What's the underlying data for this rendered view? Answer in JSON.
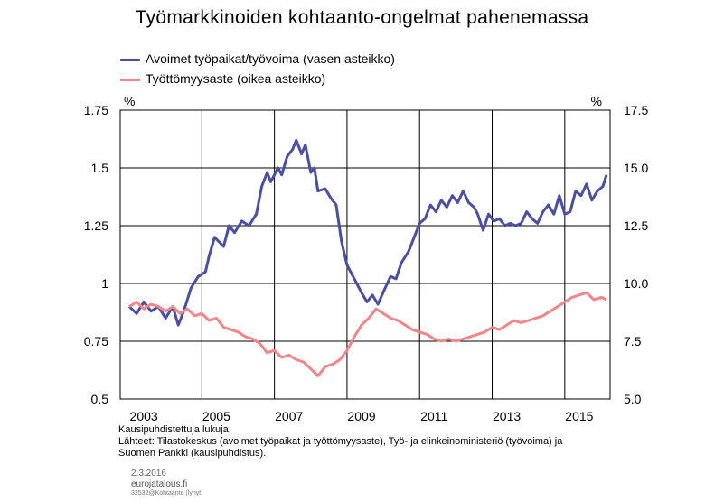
{
  "chart_data": {
    "type": "line",
    "title": "Työmarkkinoiden  kohtaanto-ongelmat  pahenemassa",
    "x_range": [
      2002.75,
      2016.25
    ],
    "x_ticks": [
      "2003",
      "2005",
      "2007",
      "2009",
      "2011",
      "2013",
      "2015"
    ],
    "left_axis": {
      "unit": "%",
      "ylim": [
        0.5,
        1.75
      ],
      "ticks": [
        "0.5",
        "0.75",
        "1",
        "1.25",
        "1.5",
        "1.75"
      ]
    },
    "right_axis": {
      "unit": "%",
      "ylim": [
        5.0,
        17.5
      ],
      "ticks": [
        "5.0",
        "7.5",
        "10.0",
        "12.5",
        "15.0",
        "17.5"
      ]
    },
    "grid": true,
    "series": [
      {
        "name": "Avoimet työpaikat/työvoima (vasen asteikko)",
        "axis": "left",
        "color": "#4a4fa0",
        "points": [
          [
            2003.0,
            0.9
          ],
          [
            2003.2,
            0.87
          ],
          [
            2003.4,
            0.92
          ],
          [
            2003.6,
            0.88
          ],
          [
            2003.8,
            0.9
          ],
          [
            2004.0,
            0.85
          ],
          [
            2004.2,
            0.9
          ],
          [
            2004.35,
            0.82
          ],
          [
            2004.5,
            0.88
          ],
          [
            2004.7,
            0.98
          ],
          [
            2004.9,
            1.03
          ],
          [
            2005.1,
            1.05
          ],
          [
            2005.2,
            1.12
          ],
          [
            2005.35,
            1.2
          ],
          [
            2005.6,
            1.16
          ],
          [
            2005.75,
            1.25
          ],
          [
            2005.9,
            1.22
          ],
          [
            2006.1,
            1.27
          ],
          [
            2006.3,
            1.25
          ],
          [
            2006.5,
            1.3
          ],
          [
            2006.65,
            1.42
          ],
          [
            2006.8,
            1.48
          ],
          [
            2006.9,
            1.44
          ],
          [
            2007.1,
            1.5
          ],
          [
            2007.2,
            1.47
          ],
          [
            2007.35,
            1.55
          ],
          [
            2007.5,
            1.58
          ],
          [
            2007.6,
            1.62
          ],
          [
            2007.75,
            1.56
          ],
          [
            2007.85,
            1.6
          ],
          [
            2008.0,
            1.48
          ],
          [
            2008.1,
            1.5
          ],
          [
            2008.2,
            1.4
          ],
          [
            2008.4,
            1.41
          ],
          [
            2008.55,
            1.37
          ],
          [
            2008.7,
            1.34
          ],
          [
            2008.85,
            1.18
          ],
          [
            2009.0,
            1.08
          ],
          [
            2009.2,
            1.02
          ],
          [
            2009.4,
            0.96
          ],
          [
            2009.55,
            0.92
          ],
          [
            2009.7,
            0.95
          ],
          [
            2009.85,
            0.91
          ],
          [
            2010.05,
            0.98
          ],
          [
            2010.2,
            1.03
          ],
          [
            2010.35,
            1.02
          ],
          [
            2010.5,
            1.09
          ],
          [
            2010.7,
            1.14
          ],
          [
            2010.85,
            1.2
          ],
          [
            2011.0,
            1.26
          ],
          [
            2011.15,
            1.28
          ],
          [
            2011.3,
            1.34
          ],
          [
            2011.45,
            1.31
          ],
          [
            2011.6,
            1.36
          ],
          [
            2011.75,
            1.33
          ],
          [
            2011.9,
            1.38
          ],
          [
            2012.05,
            1.35
          ],
          [
            2012.2,
            1.4
          ],
          [
            2012.35,
            1.35
          ],
          [
            2012.5,
            1.33
          ],
          [
            2012.6,
            1.3
          ],
          [
            2012.75,
            1.23
          ],
          [
            2012.9,
            1.3
          ],
          [
            2013.05,
            1.27
          ],
          [
            2013.2,
            1.28
          ],
          [
            2013.35,
            1.25
          ],
          [
            2013.5,
            1.26
          ],
          [
            2013.65,
            1.25
          ],
          [
            2013.8,
            1.26
          ],
          [
            2013.95,
            1.31
          ],
          [
            2014.1,
            1.28
          ],
          [
            2014.25,
            1.26
          ],
          [
            2014.4,
            1.31
          ],
          [
            2014.55,
            1.34
          ],
          [
            2014.7,
            1.3
          ],
          [
            2014.85,
            1.38
          ],
          [
            2015.0,
            1.3
          ],
          [
            2015.15,
            1.31
          ],
          [
            2015.3,
            1.4
          ],
          [
            2015.45,
            1.38
          ],
          [
            2015.6,
            1.43
          ],
          [
            2015.75,
            1.36
          ],
          [
            2015.9,
            1.4
          ],
          [
            2016.05,
            1.42
          ],
          [
            2016.15,
            1.47
          ]
        ]
      },
      {
        "name": "Työttömyysaste (oikea asteikko)",
        "axis": "right",
        "color": "#f2868a",
        "points": [
          [
            2003.0,
            9.0
          ],
          [
            2003.2,
            9.2
          ],
          [
            2003.4,
            8.9
          ],
          [
            2003.6,
            9.1
          ],
          [
            2003.8,
            9.0
          ],
          [
            2004.0,
            8.8
          ],
          [
            2004.2,
            9.0
          ],
          [
            2004.4,
            8.7
          ],
          [
            2004.6,
            8.9
          ],
          [
            2004.8,
            8.6
          ],
          [
            2005.0,
            8.7
          ],
          [
            2005.2,
            8.4
          ],
          [
            2005.4,
            8.5
          ],
          [
            2005.6,
            8.1
          ],
          [
            2005.8,
            8.0
          ],
          [
            2006.0,
            7.9
          ],
          [
            2006.2,
            7.7
          ],
          [
            2006.4,
            7.6
          ],
          [
            2006.6,
            7.4
          ],
          [
            2006.8,
            7.0
          ],
          [
            2007.0,
            7.1
          ],
          [
            2007.2,
            6.8
          ],
          [
            2007.4,
            6.9
          ],
          [
            2007.6,
            6.7
          ],
          [
            2007.8,
            6.6
          ],
          [
            2008.0,
            6.3
          ],
          [
            2008.2,
            6.0
          ],
          [
            2008.4,
            6.4
          ],
          [
            2008.6,
            6.5
          ],
          [
            2008.8,
            6.7
          ],
          [
            2009.0,
            7.1
          ],
          [
            2009.2,
            7.7
          ],
          [
            2009.4,
            8.2
          ],
          [
            2009.6,
            8.5
          ],
          [
            2009.8,
            8.9
          ],
          [
            2010.0,
            8.7
          ],
          [
            2010.2,
            8.5
          ],
          [
            2010.4,
            8.4
          ],
          [
            2010.6,
            8.2
          ],
          [
            2010.8,
            8.0
          ],
          [
            2011.0,
            7.9
          ],
          [
            2011.2,
            7.8
          ],
          [
            2011.4,
            7.6
          ],
          [
            2011.6,
            7.5
          ],
          [
            2011.8,
            7.6
          ],
          [
            2012.0,
            7.5
          ],
          [
            2012.2,
            7.6
          ],
          [
            2012.4,
            7.7
          ],
          [
            2012.6,
            7.8
          ],
          [
            2012.8,
            7.9
          ],
          [
            2013.0,
            8.1
          ],
          [
            2013.2,
            8.0
          ],
          [
            2013.4,
            8.2
          ],
          [
            2013.6,
            8.4
          ],
          [
            2013.8,
            8.3
          ],
          [
            2014.0,
            8.4
          ],
          [
            2014.2,
            8.5
          ],
          [
            2014.4,
            8.6
          ],
          [
            2014.6,
            8.8
          ],
          [
            2014.8,
            9.0
          ],
          [
            2015.0,
            9.2
          ],
          [
            2015.2,
            9.4
          ],
          [
            2015.4,
            9.5
          ],
          [
            2015.6,
            9.6
          ],
          [
            2015.8,
            9.3
          ],
          [
            2016.0,
            9.4
          ],
          [
            2016.15,
            9.3
          ]
        ]
      }
    ],
    "legend_position": "top-left"
  },
  "notes": {
    "line1": "Kausipuhdistettuja lukuja.",
    "line2": "Lähteet: Tilastokeskus (avoimet työpaikat ja työttömyysaste), Työ- ja elinkeinoministeriö (työvoima) ja",
    "line3": "Suomen Pankki (kausipuhdistus)."
  },
  "footer": {
    "date": "2.3.2016",
    "site": "eurojatalous.fi",
    "code": "32532@Kohtaanto (lyhyt)"
  }
}
